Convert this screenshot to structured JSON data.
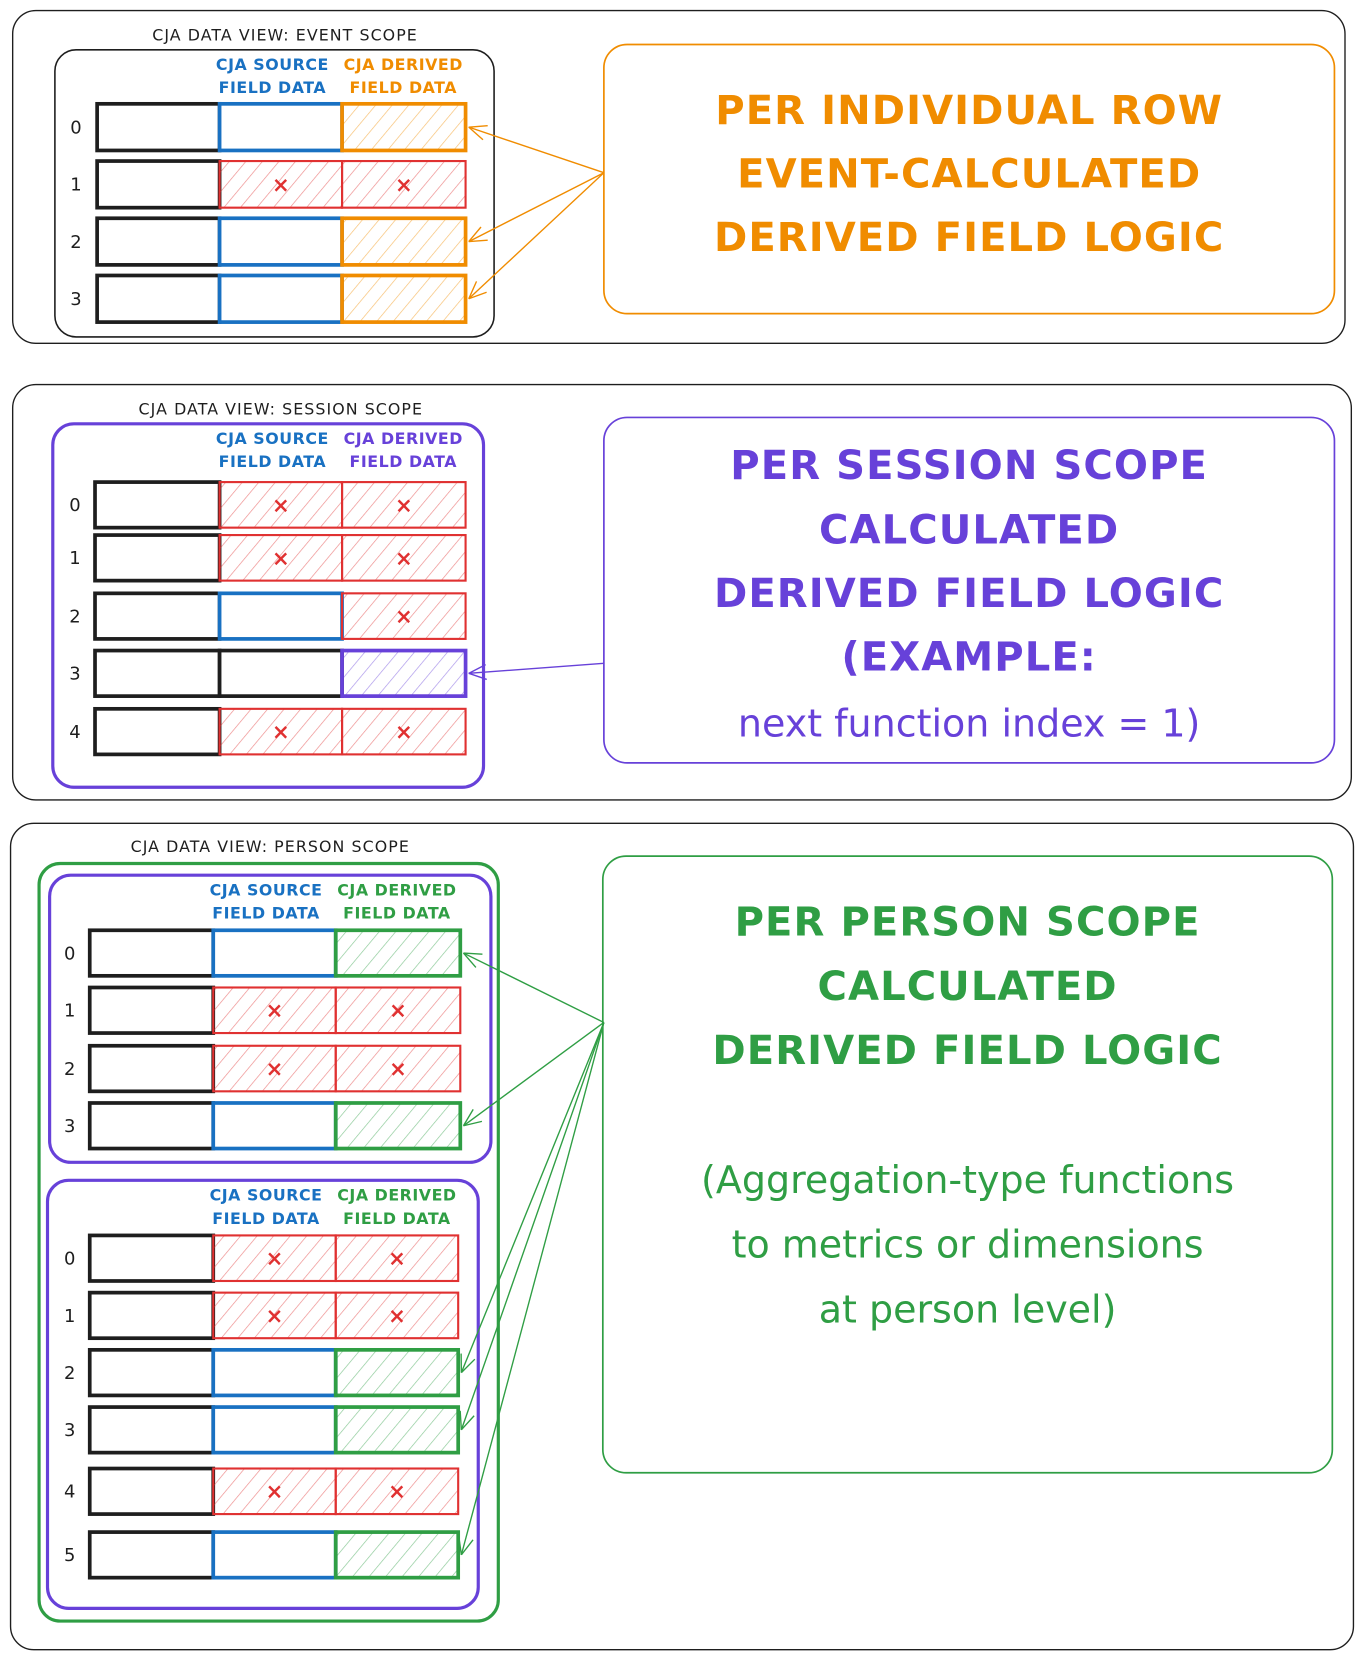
{
  "colors": {
    "black": "#1e1e1e",
    "source": "#1971c2",
    "missing": "#e03131",
    "event": "#f08c00",
    "session": "#6741d9",
    "person": "#2f9e44"
  },
  "legend": {
    "source_line1": "CJA SOURCE",
    "source_line2": "FIELD DATA",
    "derived_line1": "CJA DERIVED",
    "derived_line2": "FIELD DATA"
  },
  "panels": [
    {
      "id": "event",
      "title": "CJA DATA VIEW: EVENT SCOPE",
      "description": [
        "PER INDIVIDUAL ROW",
        "EVENT-CALCULATED",
        "DERIVED FIELD LOGIC"
      ],
      "groups": [
        {
          "rows": [
            {
              "index": "0",
              "source": "ok",
              "derived": "calculated"
            },
            {
              "index": "1",
              "source": "missing",
              "derived": "missing"
            },
            {
              "index": "2",
              "source": "ok",
              "derived": "calculated"
            },
            {
              "index": "3",
              "source": "ok",
              "derived": "calculated"
            }
          ]
        }
      ]
    },
    {
      "id": "session",
      "title": "CJA DATA VIEW: SESSION SCOPE",
      "description": [
        "PER SESSION SCOPE",
        "CALCULATED",
        "DERIVED FIELD LOGIC",
        "(EXAMPLE:",
        "next function index = 1)"
      ],
      "groups": [
        {
          "rows": [
            {
              "index": "0",
              "source": "missing",
              "derived": "missing"
            },
            {
              "index": "1",
              "source": "missing",
              "derived": "missing"
            },
            {
              "index": "2",
              "source": "ok",
              "derived": "missing"
            },
            {
              "index": "3",
              "source": "empty",
              "derived": "calculated"
            },
            {
              "index": "4",
              "source": "missing",
              "derived": "missing"
            }
          ]
        }
      ]
    },
    {
      "id": "person",
      "title": "CJA DATA VIEW: PERSON SCOPE",
      "description": [
        "PER PERSON SCOPE",
        "CALCULATED",
        "DERIVED FIELD LOGIC",
        "",
        "(Aggregation-type functions",
        "to metrics or dimensions",
        "at person level)"
      ],
      "groups": [
        {
          "rows": [
            {
              "index": "0",
              "source": "ok",
              "derived": "calculated"
            },
            {
              "index": "1",
              "source": "missing",
              "derived": "missing"
            },
            {
              "index": "2",
              "source": "missing",
              "derived": "missing"
            },
            {
              "index": "3",
              "source": "ok",
              "derived": "calculated"
            }
          ]
        },
        {
          "rows": [
            {
              "index": "0",
              "source": "missing",
              "derived": "missing"
            },
            {
              "index": "1",
              "source": "missing",
              "derived": "missing"
            },
            {
              "index": "2",
              "source": "ok",
              "derived": "calculated"
            },
            {
              "index": "3",
              "source": "ok",
              "derived": "calculated"
            },
            {
              "index": "4",
              "source": "missing",
              "derived": "missing"
            },
            {
              "index": "5",
              "source": "ok",
              "derived": "calculated"
            }
          ]
        }
      ]
    }
  ]
}
